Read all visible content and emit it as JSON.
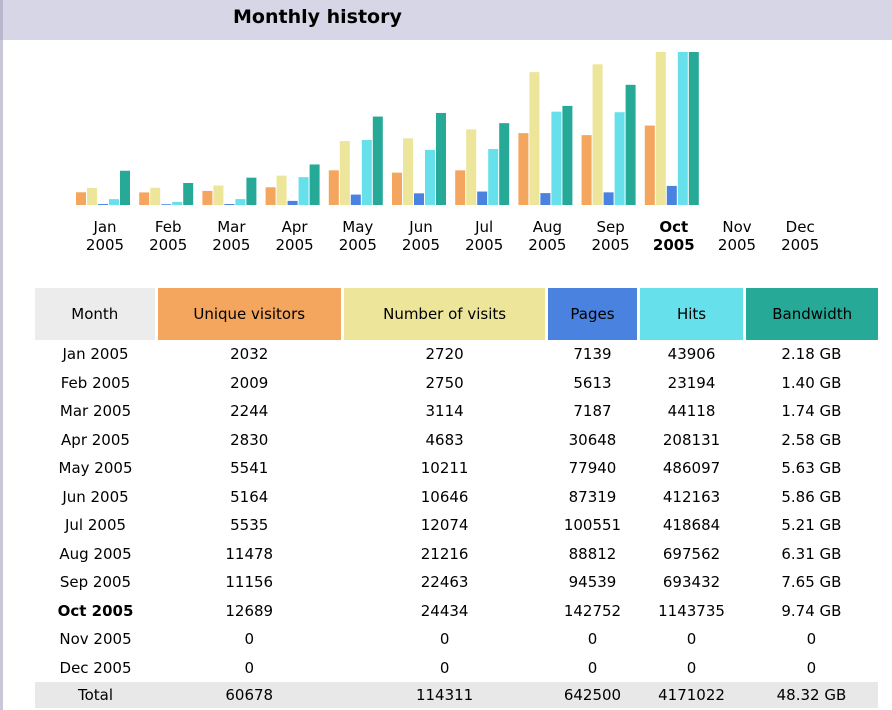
{
  "title": "Monthly history",
  "chart_data": {
    "type": "bar",
    "categories": [
      "Jan 2005",
      "Feb 2005",
      "Mar 2005",
      "Apr 2005",
      "May 2005",
      "Jun 2005",
      "Jul 2005",
      "Aug 2005",
      "Sep 2005",
      "Oct 2005",
      "Nov 2005",
      "Dec 2005"
    ],
    "highlight": "Oct 2005",
    "series": [
      {
        "name": "Unique visitors",
        "color": "#f4a55e",
        "values": [
          2032,
          2009,
          2244,
          2830,
          5541,
          5164,
          5535,
          11478,
          11156,
          12689,
          0,
          0
        ]
      },
      {
        "name": "Number of visits",
        "color": "#ece59a",
        "values": [
          2720,
          2750,
          3114,
          4683,
          10211,
          10646,
          12074,
          21216,
          22463,
          24434,
          0,
          0
        ]
      },
      {
        "name": "Pages",
        "color": "#4a82e0",
        "values": [
          7139,
          5613,
          7187,
          30648,
          77940,
          87319,
          100551,
          88812,
          94539,
          142752,
          0,
          0
        ]
      },
      {
        "name": "Hits",
        "color": "#66e0ea",
        "values": [
          43906,
          23194,
          44118,
          208131,
          486097,
          412163,
          418684,
          697562,
          693432,
          1143735,
          0,
          0
        ]
      },
      {
        "name": "Bandwidth",
        "color": "#27a998",
        "values": [
          2.18,
          1.4,
          1.74,
          2.58,
          5.63,
          5.86,
          5.21,
          6.31,
          7.65,
          9.74,
          0,
          0
        ],
        "value_labels": [
          "2.18 GB",
          "1.40 GB",
          "1.74 GB",
          "2.58 GB",
          "5.63 GB",
          "5.86 GB",
          "5.21 GB",
          "6.31 GB",
          "7.65 GB",
          "9.74 GB",
          "0",
          "0"
        ]
      }
    ]
  },
  "table": {
    "month_header": "Month",
    "total_label": "Total",
    "totals": [
      60678,
      114311,
      642500,
      4171022,
      {
        "value": 48.32,
        "label": "48.32 GB"
      }
    ]
  }
}
